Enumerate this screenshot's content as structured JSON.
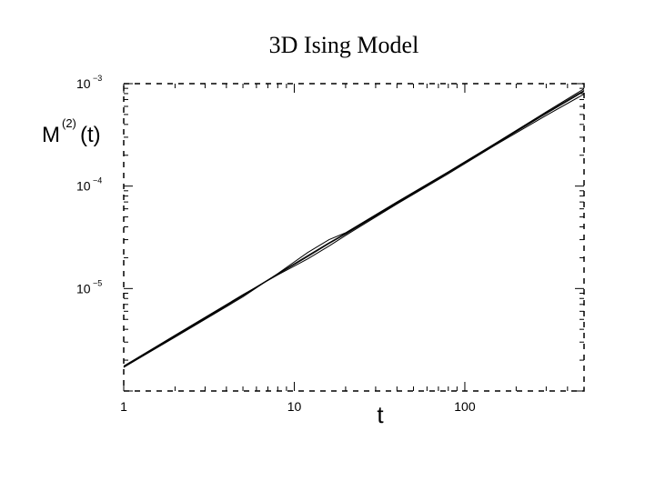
{
  "chart_data": {
    "type": "line",
    "title": "3D Ising Model",
    "xlabel": "t",
    "ylabel": "M",
    "ylabel_superscript": "(2)",
    "ylabel_suffix": "(t)",
    "xscale": "log",
    "yscale": "log",
    "xlim": [
      1,
      500
    ],
    "ylim": [
      1e-06,
      0.001
    ],
    "x_ticks": [
      {
        "value": 1,
        "label": "1"
      },
      {
        "value": 10,
        "label": "10"
      },
      {
        "value": 100,
        "label": "100"
      }
    ],
    "y_ticks": [
      {
        "value": 1e-05,
        "base": "10",
        "exp": "−5"
      },
      {
        "value": 0.0001,
        "base": "10",
        "exp": "−4"
      },
      {
        "value": 0.001,
        "base": "10",
        "exp": "−3"
      }
    ],
    "grid": false,
    "series": [
      {
        "x": [
          1,
          2,
          5,
          8,
          12,
          16,
          20,
          40,
          80,
          150,
          300,
          500
        ],
        "y": [
          1.7e-06,
          3.4e-06,
          8.5e-06,
          1.38e-05,
          2.05e-05,
          2.75e-05,
          3.4e-05,
          6.8e-05,
          0.000135,
          0.000255,
          0.00051,
          0.00084
        ]
      },
      {
        "x": [
          1,
          2,
          5,
          8,
          12,
          16,
          20,
          40,
          80,
          150,
          300,
          500
        ],
        "y": [
          1.7e-06,
          3.35e-06,
          8.3e-06,
          1.4e-05,
          2.25e-05,
          3e-05,
          3.5e-05,
          7e-05,
          0.000138,
          0.00026,
          0.00053,
          0.00089
        ]
      },
      {
        "x": [
          1,
          2,
          5,
          8,
          12,
          16,
          20,
          40,
          80,
          150,
          300,
          500
        ],
        "y": [
          1.75e-06,
          3.5e-06,
          8.7e-06,
          1.36e-05,
          1.95e-05,
          2.6e-05,
          3.3e-05,
          6.7e-05,
          0.000132,
          0.00025,
          0.00049,
          0.00079
        ]
      },
      {
        "x": [
          1,
          2,
          5,
          8,
          12,
          16,
          20,
          40,
          80,
          150,
          300,
          500
        ],
        "y": [
          1.72e-06,
          3.45e-06,
          8.6e-06,
          1.39e-05,
          2.1e-05,
          2.8e-05,
          3.45e-05,
          6.9e-05,
          0.000136,
          0.000258,
          0.00052,
          0.00086
        ]
      }
    ]
  }
}
